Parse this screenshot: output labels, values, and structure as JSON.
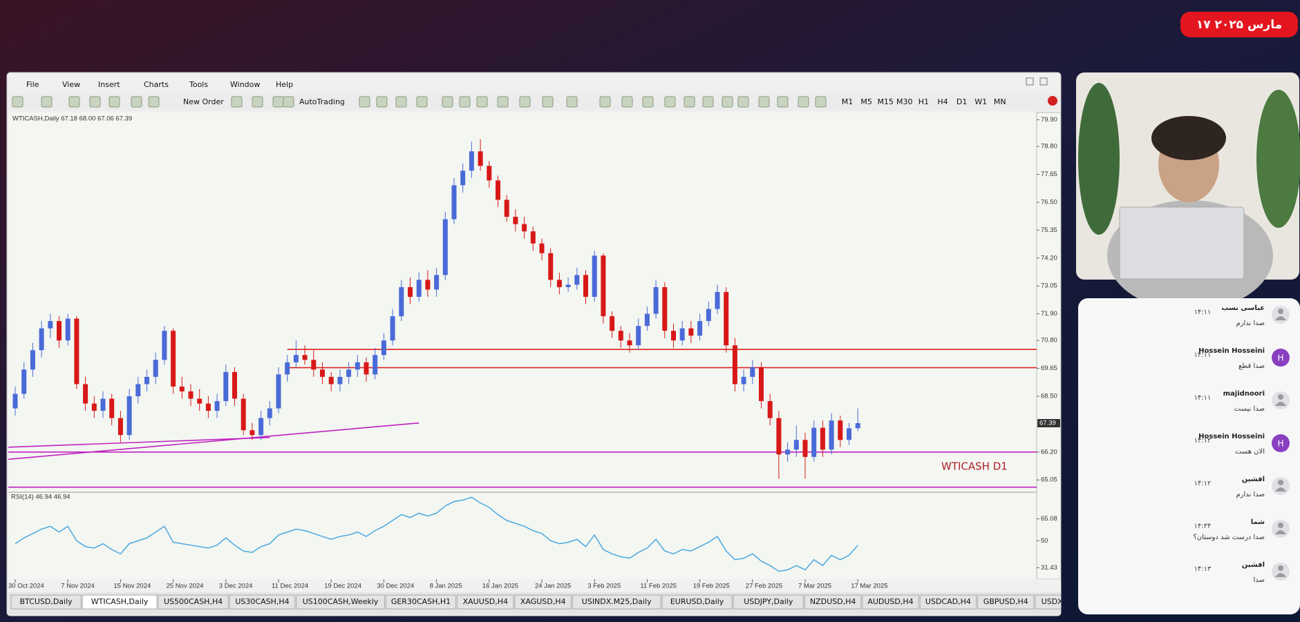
{
  "badge": "۱۷ مارس ۲۰۲۵",
  "window": {
    "menu": [
      "File",
      "View",
      "Insert",
      "Charts",
      "Tools",
      "Window",
      "Help"
    ],
    "toolbar": [
      "New Order",
      "AutoTrading"
    ],
    "timeframes": [
      "M1",
      "M5",
      "M15",
      "M30",
      "H1",
      "H4",
      "D1",
      "W1",
      "MN"
    ],
    "tabs": [
      "BTCUSD,Daily",
      "WTICASH,Daily",
      "US500CASH,H4",
      "US30CASH,H4",
      "US100CASH,Weekly",
      "GER30CASH,H1",
      "XAUUSD,H4",
      "XAGUSD,H4",
      "USINDX.M25,Daily",
      "EURUSD,Daily",
      "USDJPY,Daily",
      "NZDUSD,H4",
      "AUDUSD,H4",
      "USDCAD,H4",
      "GBPUSD,H4",
      "USDX"
    ]
  },
  "chart_data": {
    "type": "candlestick",
    "title": "WTICASH,Daily  67.18 68.00 67.06 67.39",
    "annotation": "WTICASH D1",
    "annotation_color": "#b0202a",
    "up_color": "#4a6ad8",
    "down_color": "#d81818",
    "categories": [
      "30 Oct 2024",
      null,
      null,
      null,
      null,
      null,
      "7 Nov 2024",
      null,
      null,
      null,
      null,
      null,
      "15 Nov 2024",
      null,
      null,
      null,
      null,
      null,
      "25 Nov 2024",
      null,
      null,
      null,
      null,
      null,
      "3 Dec 2024",
      null,
      null,
      null,
      null,
      null,
      "11 Dec 2024",
      null,
      null,
      null,
      null,
      null,
      "19 Dec 2024",
      null,
      null,
      null,
      null,
      null,
      "30 Dec 2024",
      null,
      null,
      null,
      null,
      null,
      "8 Jan 2025",
      null,
      null,
      null,
      null,
      null,
      "16 Jan 2025",
      null,
      null,
      null,
      null,
      null,
      "24 Jan 2025",
      null,
      null,
      null,
      null,
      null,
      "3 Feb 2025",
      null,
      null,
      null,
      null,
      null,
      "11 Feb 2025",
      null,
      null,
      null,
      null,
      null,
      "19 Feb 2025",
      null,
      null,
      null,
      null,
      null,
      "27 Feb 2025",
      null,
      null,
      null,
      null,
      null,
      "7 Mar 2025",
      null,
      null,
      null,
      null,
      null,
      "17 Mar 2025"
    ],
    "candles": [
      [
        68.0,
        68.9,
        67.7,
        68.6
      ],
      [
        68.6,
        69.9,
        68.4,
        69.6
      ],
      [
        69.6,
        70.7,
        69.3,
        70.4
      ],
      [
        70.4,
        71.6,
        70.1,
        71.3
      ],
      [
        71.3,
        71.9,
        70.9,
        71.6
      ],
      [
        71.6,
        71.8,
        70.5,
        70.8
      ],
      [
        70.8,
        71.9,
        70.6,
        71.7
      ],
      [
        71.7,
        71.8,
        68.8,
        69.0
      ],
      [
        69.0,
        69.3,
        67.9,
        68.2
      ],
      [
        68.2,
        68.5,
        67.6,
        67.9
      ],
      [
        67.9,
        68.7,
        67.6,
        68.4
      ],
      [
        68.4,
        68.6,
        67.3,
        67.6
      ],
      [
        67.6,
        67.9,
        66.6,
        66.9
      ],
      [
        66.9,
        68.8,
        66.7,
        68.5
      ],
      [
        68.5,
        69.3,
        68.2,
        69.0
      ],
      [
        69.0,
        69.6,
        68.7,
        69.3
      ],
      [
        69.3,
        70.3,
        69.0,
        70.0
      ],
      [
        70.0,
        71.4,
        69.8,
        71.2
      ],
      [
        71.2,
        71.3,
        68.6,
        68.9
      ],
      [
        68.9,
        69.3,
        68.4,
        68.7
      ],
      [
        68.7,
        69.0,
        68.1,
        68.4
      ],
      [
        68.4,
        68.8,
        67.9,
        68.2
      ],
      [
        68.2,
        68.5,
        67.6,
        67.9
      ],
      [
        67.9,
        68.6,
        67.6,
        68.3
      ],
      [
        68.3,
        69.8,
        68.1,
        69.5
      ],
      [
        69.5,
        69.7,
        68.1,
        68.4
      ],
      [
        68.4,
        68.6,
        66.9,
        67.1
      ],
      [
        67.1,
        67.4,
        66.7,
        66.9
      ],
      [
        66.9,
        67.9,
        66.7,
        67.6
      ],
      [
        67.6,
        68.3,
        67.3,
        68.0
      ],
      [
        68.0,
        69.7,
        67.8,
        69.4
      ],
      [
        69.4,
        70.2,
        69.1,
        69.9
      ],
      [
        69.9,
        70.8,
        69.7,
        70.2
      ],
      [
        70.2,
        70.6,
        69.8,
        70.0
      ],
      [
        70.0,
        70.4,
        69.3,
        69.6
      ],
      [
        69.6,
        69.9,
        69.0,
        69.3
      ],
      [
        69.3,
        69.5,
        68.7,
        69.0
      ],
      [
        69.0,
        69.6,
        68.7,
        69.3
      ],
      [
        69.3,
        69.9,
        69.0,
        69.6
      ],
      [
        69.6,
        70.2,
        69.3,
        69.9
      ],
      [
        69.9,
        70.1,
        69.1,
        69.4
      ],
      [
        69.4,
        70.5,
        69.2,
        70.2
      ],
      [
        70.2,
        71.1,
        70.0,
        70.8
      ],
      [
        70.8,
        72.1,
        70.6,
        71.8
      ],
      [
        71.8,
        73.3,
        71.6,
        73.0
      ],
      [
        73.0,
        73.4,
        72.3,
        72.6
      ],
      [
        72.6,
        73.6,
        72.4,
        73.3
      ],
      [
        73.3,
        73.7,
        72.6,
        72.9
      ],
      [
        72.9,
        73.8,
        72.6,
        73.5
      ],
      [
        73.5,
        76.1,
        73.3,
        75.8
      ],
      [
        75.8,
        77.5,
        75.6,
        77.2
      ],
      [
        77.2,
        78.1,
        76.9,
        77.8
      ],
      [
        77.8,
        79.0,
        77.5,
        78.6
      ],
      [
        78.6,
        79.1,
        77.8,
        78.0
      ],
      [
        78.0,
        78.2,
        77.1,
        77.4
      ],
      [
        77.4,
        77.6,
        76.3,
        76.6
      ],
      [
        76.6,
        76.8,
        75.7,
        75.9
      ],
      [
        75.9,
        76.2,
        75.3,
        75.6
      ],
      [
        75.6,
        75.9,
        75.0,
        75.3
      ],
      [
        75.3,
        75.5,
        74.5,
        74.8
      ],
      [
        74.8,
        75.0,
        74.1,
        74.4
      ],
      [
        74.4,
        74.6,
        73.0,
        73.3
      ],
      [
        73.3,
        73.6,
        72.7,
        73.0
      ],
      [
        73.0,
        73.4,
        72.8,
        73.1
      ],
      [
        73.1,
        73.8,
        72.9,
        73.5
      ],
      [
        73.5,
        73.7,
        72.3,
        72.6
      ],
      [
        72.6,
        74.5,
        72.4,
        74.3
      ],
      [
        74.3,
        74.4,
        71.5,
        71.8
      ],
      [
        71.8,
        72.0,
        70.9,
        71.2
      ],
      [
        71.2,
        71.4,
        70.5,
        70.8
      ],
      [
        70.8,
        71.1,
        70.3,
        70.6
      ],
      [
        70.6,
        71.7,
        70.4,
        71.4
      ],
      [
        71.4,
        72.2,
        71.2,
        71.9
      ],
      [
        71.9,
        73.3,
        71.7,
        73.0
      ],
      [
        73.0,
        73.2,
        70.9,
        71.2
      ],
      [
        71.2,
        71.5,
        70.5,
        70.8
      ],
      [
        70.8,
        71.6,
        70.6,
        71.3
      ],
      [
        71.3,
        71.6,
        70.7,
        71.0
      ],
      [
        71.0,
        71.9,
        70.8,
        71.6
      ],
      [
        71.6,
        72.4,
        71.4,
        72.1
      ],
      [
        72.1,
        73.1,
        71.9,
        72.8
      ],
      [
        72.8,
        73.0,
        70.3,
        70.6
      ],
      [
        70.6,
        70.9,
        68.7,
        69.0
      ],
      [
        69.0,
        69.6,
        68.7,
        69.3
      ],
      [
        69.3,
        70.0,
        69.0,
        69.7
      ],
      [
        69.7,
        69.9,
        68.0,
        68.3
      ],
      [
        68.3,
        68.6,
        67.3,
        67.6
      ],
      [
        67.6,
        67.9,
        65.1,
        66.1
      ],
      [
        66.1,
        66.6,
        65.8,
        66.3
      ],
      [
        66.3,
        67.3,
        66.0,
        66.7
      ],
      [
        66.7,
        67.0,
        65.1,
        66.0
      ],
      [
        66.0,
        67.5,
        65.8,
        67.2
      ],
      [
        67.2,
        67.5,
        66.0,
        66.3
      ],
      [
        66.3,
        67.8,
        66.1,
        67.5
      ],
      [
        67.5,
        67.7,
        66.4,
        66.7
      ],
      [
        66.7,
        67.4,
        66.5,
        67.18
      ],
      [
        67.18,
        68.0,
        67.06,
        67.39
      ]
    ],
    "ylim": [
      64.6,
      80.2
    ],
    "yticks": [
      {
        "value": 79.9,
        "label": "79.90"
      },
      {
        "value": 78.8,
        "label": "78.80"
      },
      77.65,
      {
        "value": 76.5,
        "label": "76.50"
      },
      75.35,
      {
        "value": 74.2,
        "label": "74.20"
      },
      73.05,
      {
        "value": 71.9,
        "label": "71.90"
      },
      {
        "value": 70.8,
        "label": "70.80"
      },
      69.65,
      {
        "value": 68.5,
        "label": "68.50"
      },
      {
        "value": 66.2,
        "label": "66.20"
      },
      65.05
    ],
    "hlines": [
      {
        "value": 70.43,
        "color": "#e02020"
      },
      {
        "value": 69.68,
        "color": "#e02020"
      },
      {
        "value": 66.2,
        "color": "#c020c0"
      },
      {
        "value": 64.75,
        "color": "#c020c0"
      }
    ],
    "trendlines": [
      {
        "x": [
          0,
          46
        ],
        "y": [
          65.9,
          67.4
        ],
        "color": "#c020c0"
      },
      {
        "x": [
          0,
          29
        ],
        "y": [
          66.4,
          66.8
        ],
        "color": "#c020c0"
      }
    ],
    "indicator": {
      "title": "RSI(14) 46.94 46.94",
      "color": "#4aa8e0",
      "values": [
        48,
        52,
        55,
        58,
        60,
        56,
        60,
        50,
        46,
        45,
        48,
        44,
        41,
        48,
        50,
        52,
        56,
        60,
        49,
        48,
        47,
        46,
        45,
        47,
        52,
        47,
        43,
        42,
        46,
        48,
        54,
        56,
        58,
        57,
        55,
        53,
        51,
        53,
        54,
        56,
        53,
        57,
        60,
        64,
        68,
        66,
        69,
        67,
        69,
        74,
        77,
        78,
        80,
        76,
        73,
        68,
        64,
        62,
        60,
        57,
        55,
        50,
        48,
        49,
        51,
        46,
        54,
        44,
        41,
        39,
        38,
        42,
        45,
        51,
        43,
        41,
        44,
        43,
        46,
        49,
        53,
        43,
        37,
        38,
        41,
        36,
        33,
        29,
        30,
        33,
        30,
        37,
        33,
        40,
        37,
        40,
        46.94
      ],
      "ylim": [
        25,
        82
      ],
      "yticks": [
        65.08,
        50,
        31.43
      ]
    }
  },
  "chat": [
    {
      "name": "عباسی نسب",
      "time": "۱۴:۱۱",
      "text": "صدا ندارم"
    },
    {
      "name": "Hossein Hosseini",
      "time": "۱۴:۱۱",
      "text": "صدا قطع",
      "avatar": "H"
    },
    {
      "name": "majidnoori",
      "time": "۱۴:۱۱",
      "text": "صدا نیست"
    },
    {
      "name": "Hossein Hosseini",
      "time": "۱۴:۱۲",
      "text": "الان هست",
      "avatar": "H"
    },
    {
      "name": "افشین",
      "time": "۱۴:۱۲",
      "text": "صدا ندارم"
    },
    {
      "name": "شما",
      "time": "۱۴:۳۴",
      "text": "صدا درست شد دوستان؟"
    },
    {
      "name": "افشین",
      "time": "۱۴:۱۳",
      "text": "صدا"
    }
  ]
}
